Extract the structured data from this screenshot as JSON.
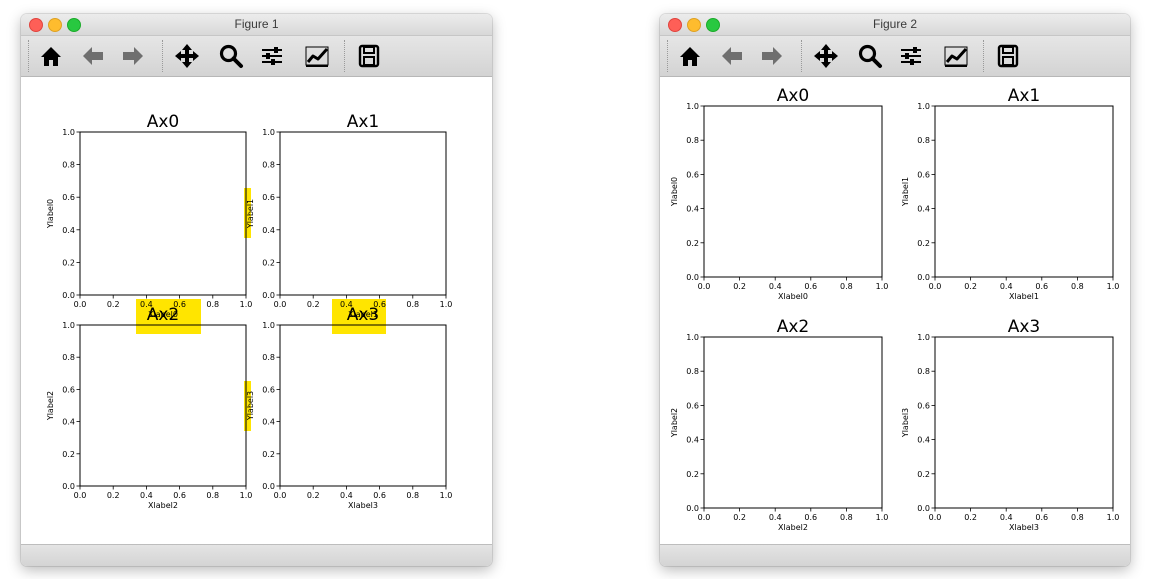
{
  "windows": [
    {
      "title": "Figure 1",
      "toolbar": [
        {
          "icon": "home-icon",
          "disabled": false
        },
        {
          "icon": "back-icon",
          "disabled": true
        },
        {
          "icon": "forward-icon",
          "disabled": true
        },
        {
          "icon": "pan-icon",
          "disabled": false
        },
        {
          "icon": "zoom-icon",
          "disabled": false
        },
        {
          "icon": "configure-subplots-icon",
          "disabled": false
        },
        {
          "icon": "edit-axis-icon",
          "disabled": false
        },
        {
          "icon": "save-icon",
          "disabled": false
        }
      ],
      "axes": [
        {
          "title": "Ax0",
          "xlabel": "Xlabel0",
          "ylabel": "Ylabel0"
        },
        {
          "title": "Ax1",
          "xlabel": "Xlabel1",
          "ylabel": "Ylabel1"
        },
        {
          "title": "Ax2",
          "xlabel": "Xlabel2",
          "ylabel": "Ylabel2"
        },
        {
          "title": "Ax3",
          "xlabel": "Xlabel3",
          "ylabel": "Ylabel3"
        }
      ],
      "overlap_highlight_color": "#ffe500"
    },
    {
      "title": "Figure 2",
      "toolbar": [
        {
          "icon": "home-icon",
          "disabled": false
        },
        {
          "icon": "back-icon",
          "disabled": true
        },
        {
          "icon": "forward-icon",
          "disabled": true
        },
        {
          "icon": "pan-icon",
          "disabled": false
        },
        {
          "icon": "zoom-icon",
          "disabled": false
        },
        {
          "icon": "configure-subplots-icon",
          "disabled": false
        },
        {
          "icon": "edit-axis-icon",
          "disabled": false
        },
        {
          "icon": "save-icon",
          "disabled": false
        }
      ],
      "axes": [
        {
          "title": "Ax0",
          "xlabel": "Xlabel0",
          "ylabel": "Ylabel0"
        },
        {
          "title": "Ax1",
          "xlabel": "Xlabel1",
          "ylabel": "Ylabel1"
        },
        {
          "title": "Ax2",
          "xlabel": "Xlabel2",
          "ylabel": "Ylabel2"
        },
        {
          "title": "Ax3",
          "xlabel": "Xlabel3",
          "ylabel": "Ylabel3"
        }
      ]
    }
  ],
  "chart_data": [
    {
      "type": "scatter",
      "figure": "Figure 1",
      "title": "Ax0",
      "xlabel": "Xlabel0",
      "ylabel": "Ylabel0",
      "xlim": [
        0,
        1
      ],
      "ylim": [
        0,
        1
      ],
      "xticks": [
        "0.0",
        "0.2",
        "0.4",
        "0.6",
        "0.8",
        "1.0"
      ],
      "yticks": [
        "0.0",
        "0.2",
        "0.4",
        "0.6",
        "0.8",
        "1.0"
      ],
      "series": []
    },
    {
      "type": "scatter",
      "figure": "Figure 1",
      "title": "Ax1",
      "xlabel": "Xlabel1",
      "ylabel": "Ylabel1",
      "xlim": [
        0,
        1
      ],
      "ylim": [
        0,
        1
      ],
      "xticks": [
        "0.0",
        "0.2",
        "0.4",
        "0.6",
        "0.8",
        "1.0"
      ],
      "yticks": [
        "0.0",
        "0.2",
        "0.4",
        "0.6",
        "0.8",
        "1.0"
      ],
      "series": []
    },
    {
      "type": "scatter",
      "figure": "Figure 1",
      "title": "Ax2",
      "xlabel": "Xlabel2",
      "ylabel": "Ylabel2",
      "xlim": [
        0,
        1
      ],
      "ylim": [
        0,
        1
      ],
      "xticks": [
        "0.0",
        "0.2",
        "0.4",
        "0.6",
        "0.8",
        "1.0"
      ],
      "yticks": [
        "0.0",
        "0.2",
        "0.4",
        "0.6",
        "0.8",
        "1.0"
      ],
      "series": []
    },
    {
      "type": "scatter",
      "figure": "Figure 1",
      "title": "Ax3",
      "xlabel": "Xlabel3",
      "ylabel": "Ylabel3",
      "xlim": [
        0,
        1
      ],
      "ylim": [
        0,
        1
      ],
      "xticks": [
        "0.0",
        "0.2",
        "0.4",
        "0.6",
        "0.8",
        "1.0"
      ],
      "yticks": [
        "0.0",
        "0.2",
        "0.4",
        "0.6",
        "0.8",
        "1.0"
      ],
      "series": []
    },
    {
      "type": "scatter",
      "figure": "Figure 2",
      "title": "Ax0",
      "xlabel": "Xlabel0",
      "ylabel": "Ylabel0",
      "xlim": [
        0,
        1
      ],
      "ylim": [
        0,
        1
      ],
      "xticks": [
        "0.0",
        "0.2",
        "0.4",
        "0.6",
        "0.8",
        "1.0"
      ],
      "yticks": [
        "0.0",
        "0.2",
        "0.4",
        "0.6",
        "0.8",
        "1.0"
      ],
      "series": []
    },
    {
      "type": "scatter",
      "figure": "Figure 2",
      "title": "Ax1",
      "xlabel": "Xlabel1",
      "ylabel": "Ylabel1",
      "xlim": [
        0,
        1
      ],
      "ylim": [
        0,
        1
      ],
      "xticks": [
        "0.0",
        "0.2",
        "0.4",
        "0.6",
        "0.8",
        "1.0"
      ],
      "yticks": [
        "0.0",
        "0.2",
        "0.4",
        "0.6",
        "0.8",
        "1.0"
      ],
      "series": []
    },
    {
      "type": "scatter",
      "figure": "Figure 2",
      "title": "Ax2",
      "xlabel": "Xlabel2",
      "ylabel": "Ylabel2",
      "xlim": [
        0,
        1
      ],
      "ylim": [
        0,
        1
      ],
      "xticks": [
        "0.0",
        "0.2",
        "0.4",
        "0.6",
        "0.8",
        "1.0"
      ],
      "yticks": [
        "0.0",
        "0.2",
        "0.4",
        "0.6",
        "0.8",
        "1.0"
      ],
      "series": []
    },
    {
      "type": "scatter",
      "figure": "Figure 2",
      "title": "Ax3",
      "xlabel": "Xlabel3",
      "ylabel": "Ylabel3",
      "xlim": [
        0,
        1
      ],
      "ylim": [
        0,
        1
      ],
      "xticks": [
        "0.0",
        "0.2",
        "0.4",
        "0.6",
        "0.8",
        "1.0"
      ],
      "yticks": [
        "0.0",
        "0.2",
        "0.4",
        "0.6",
        "0.8",
        "1.0"
      ],
      "series": []
    }
  ]
}
